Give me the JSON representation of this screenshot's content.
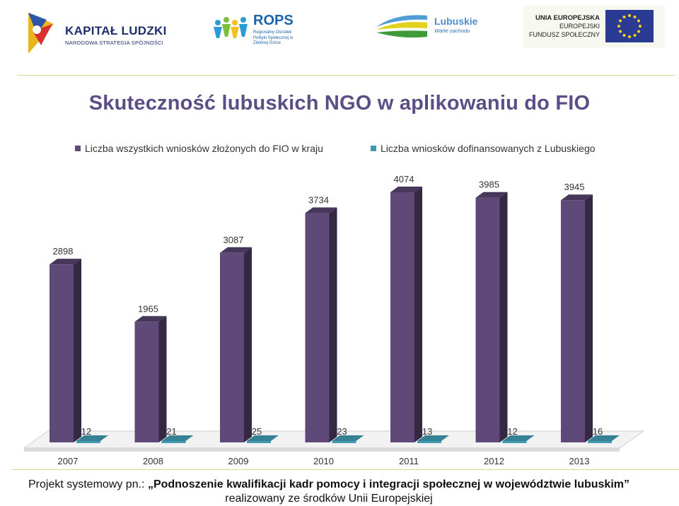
{
  "logos": {
    "kapital_ludzki": {
      "name": "KAPITAŁ LUDZKI",
      "subtitle": "NARODOWA STRATEGIA SPÓJNOŚCI"
    },
    "rops": {
      "name": "ROPS",
      "subtitle": "Regionalny Ośrodek Polityki Społecznej w Zielonej Górze"
    },
    "lubuskie": {
      "name": "Lubuskie",
      "subtitle": "Warte zachodu"
    },
    "eu": {
      "line1": "UNIA EUROPEJSKA",
      "line2": "EUROPEJSKI",
      "line3": "FUNDUSZ SPOŁECZNY"
    }
  },
  "colors": {
    "series1": "#5e4978",
    "series2": "#3f98ae",
    "title": "#5b4e86",
    "rule": "#c9e08a"
  },
  "chart_data": {
    "type": "bar",
    "title": "Skuteczność lubuskich NGO w aplikowaniu do FIO",
    "categories": [
      "2007",
      "2008",
      "2009",
      "2010",
      "2011",
      "2012",
      "2013"
    ],
    "series": [
      {
        "name": "Liczba wszystkich wniosków złożonych do FIO w kraju",
        "values": [
          2898,
          1965,
          3087,
          3734,
          4074,
          3985,
          3945
        ]
      },
      {
        "name": "Liczba wniosków dofinansowanych z Lubuskiego",
        "values": [
          12,
          21,
          25,
          23,
          13,
          12,
          16
        ]
      }
    ],
    "ylim": [
      0,
      4074
    ],
    "legend": "top",
    "grid": false
  },
  "footer": {
    "prefix": "Projekt systemowy pn.: ",
    "project": "„Podnoszenie kwalifikacji kadr pomocy i integracji społecznej w województwie lubuskim”",
    "line2": "realizowany ze środków Unii Europejskiej"
  }
}
